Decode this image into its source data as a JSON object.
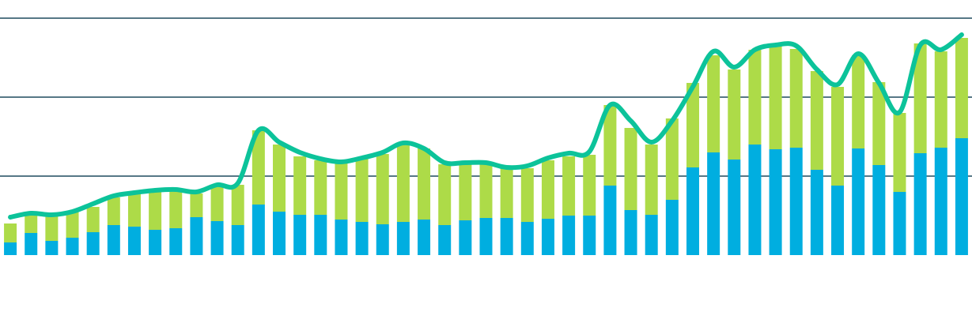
{
  "chart_data": {
    "type": "stacked-bar-line",
    "categories": [
      null,
      null,
      null,
      null,
      null,
      null,
      null,
      null,
      null,
      null,
      null,
      null,
      null,
      null,
      null,
      null,
      null,
      null,
      null,
      null,
      null,
      null,
      null,
      null,
      null,
      null,
      null,
      null,
      null,
      null,
      null,
      null,
      null,
      null,
      null,
      null,
      null,
      null,
      null,
      null,
      null,
      null,
      null,
      null,
      null,
      null,
      null
    ],
    "series": [
      {
        "color": "#00aee0",
        "kind": "bar",
        "values": [
          16,
          28,
          18,
          22,
          29,
          38,
          36,
          32,
          34,
          48,
          43,
          38,
          64,
          55,
          51,
          51,
          45,
          42,
          39,
          42,
          45,
          38,
          44,
          47,
          47,
          42,
          46,
          50,
          50,
          88,
          57,
          51,
          70,
          111,
          130,
          121,
          140,
          134,
          136,
          108,
          88,
          135,
          114,
          80,
          129,
          136,
          148
        ]
      },
      {
        "color": "#addb48",
        "kind": "bar",
        "values": [
          24,
          23,
          31,
          33,
          32,
          35,
          41,
          49,
          49,
          30,
          45,
          51,
          94,
          85,
          74,
          69,
          72,
          81,
          89,
          98,
          90,
          77,
          71,
          68,
          63,
          68,
          74,
          75,
          77,
          102,
          104,
          89,
          103,
          107,
          123,
          114,
          120,
          131,
          125,
          125,
          125,
          118,
          105,
          100,
          139,
          122,
          127
        ]
      },
      {
        "color": "#0cc39a",
        "kind": "line",
        "values": [
          48,
          53,
          51,
          55,
          65,
          75,
          79,
          82,
          83,
          80,
          89,
          91,
          158,
          143,
          130,
          122,
          118,
          123,
          130,
          142,
          135,
          117,
          117,
          117,
          111,
          113,
          123,
          129,
          131,
          190,
          170,
          143,
          170,
          213,
          258,
          238,
          260,
          266,
          265,
          235,
          216,
          255,
          218,
          181,
          266,
          260,
          279
        ]
      }
    ],
    "ylim": [
      0,
      300
    ],
    "yticks": [
      100,
      200,
      300
    ],
    "grid": true
  }
}
